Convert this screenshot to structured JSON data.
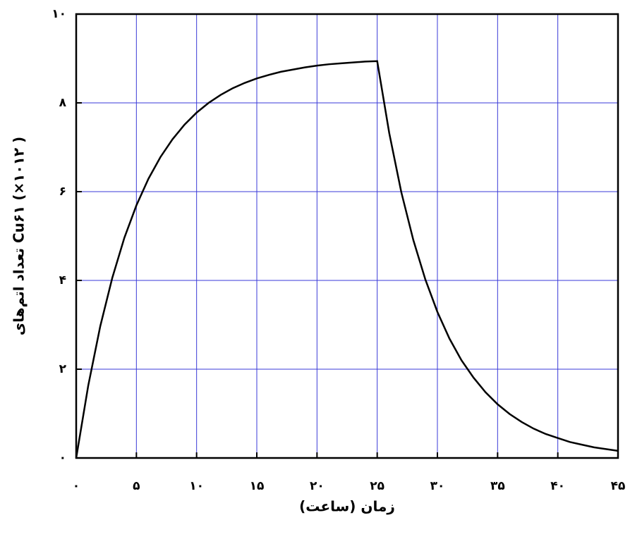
{
  "chart_data": {
    "type": "line",
    "x_label": "زمان (ساعت)",
    "y_label": "تعداد اتم‌های Cu۶۱ (×۱۰۱۲ )",
    "x": [
      0,
      1,
      2,
      3,
      4,
      5,
      6,
      7,
      8,
      9,
      10,
      11,
      12,
      13,
      14,
      15,
      16,
      17,
      18,
      19,
      20,
      21,
      22,
      23,
      24,
      25,
      26,
      27,
      28,
      29,
      30,
      31,
      32,
      33,
      34,
      35,
      36,
      37,
      38,
      39,
      40,
      41,
      42,
      43,
      44,
      45
    ],
    "series": [
      {
        "color": "#000000",
        "values": [
          0,
          1.63,
          2.97,
          4.06,
          4.96,
          5.69,
          6.29,
          6.78,
          7.18,
          7.51,
          7.78,
          8.0,
          8.18,
          8.33,
          8.45,
          8.55,
          8.63,
          8.7,
          8.75,
          8.8,
          8.84,
          8.87,
          8.89,
          8.91,
          8.93,
          8.94,
          7.32,
          5.99,
          4.91,
          4.02,
          3.29,
          2.69,
          2.2,
          1.81,
          1.48,
          1.21,
          0.99,
          0.81,
          0.66,
          0.54,
          0.45,
          0.36,
          0.3,
          0.24,
          0.2,
          0.16
        ]
      }
    ],
    "xlim": [
      0,
      45
    ],
    "xticks": [
      {
        "value": 0,
        "label": "۰"
      },
      {
        "value": 5,
        "label": "۵"
      },
      {
        "value": 10,
        "label": "۱۰"
      },
      {
        "value": 15,
        "label": "۱۵"
      },
      {
        "value": 20,
        "label": "۲۰"
      },
      {
        "value": 25,
        "label": "۲۵"
      },
      {
        "value": 30,
        "label": "۳۰"
      },
      {
        "value": 35,
        "label": "۳۵"
      },
      {
        "value": 40,
        "label": "۴۰"
      },
      {
        "value": 45,
        "label": "۴۵"
      }
    ],
    "ylim": [
      0,
      10
    ],
    "yticks": [
      {
        "value": 0,
        "label": "۰"
      },
      {
        "value": 2,
        "label": "۲"
      },
      {
        "value": 4,
        "label": "۴"
      },
      {
        "value": 6,
        "label": "۶"
      },
      {
        "value": 8,
        "label": "۸"
      },
      {
        "value": 10,
        "label": "۱۰"
      }
    ],
    "grid": true
  }
}
